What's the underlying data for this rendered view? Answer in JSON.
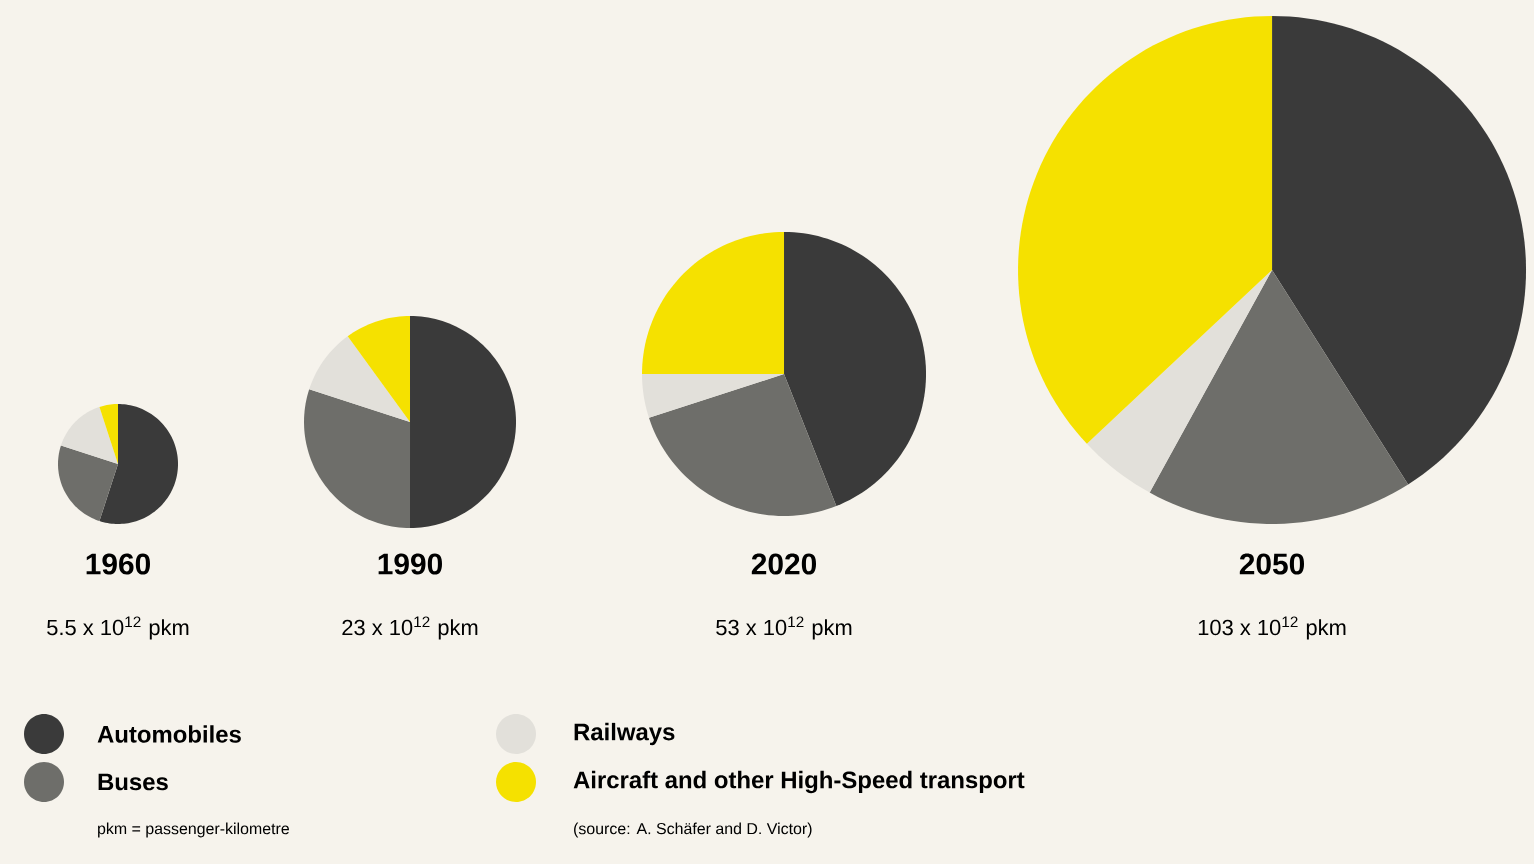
{
  "chart_data": [
    {
      "type": "pie",
      "title": "1960",
      "subtitle": "5.5 x 10$^{12}$ pkm",
      "categories": [
        "Automobiles",
        "Buses",
        "Railways",
        "Aircraft and other High-Speed transport"
      ],
      "values": [
        55,
        25,
        15,
        5
      ],
      "colors": [
        "#3a3a3a",
        "#6e6e6a",
        "#e2e0da",
        "#f5e100"
      ],
      "legend": "bottom",
      "annotations": [
        "pkm = passenger-kilometre",
        "(source: A. Schäfer and D. Victor)"
      ]
    },
    {
      "type": "pie",
      "title": "1990",
      "subtitle": "23 x 10$^{12}$ pkm",
      "categories": [
        null,
        null,
        null,
        null
      ],
      "values": [
        50,
        30,
        10,
        10
      ],
      "colors": [
        "#3a3a3a",
        "#6e6e6a",
        "#e2e0da",
        "#f5e100"
      ]
    },
    {
      "type": "pie",
      "title": "2020",
      "subtitle": "53 x 10$^{12}$ pkm",
      "categories": [
        null,
        null,
        null,
        null
      ],
      "values": [
        44,
        26,
        5,
        25
      ],
      "colors": [
        "#3a3a3a",
        "#6e6e6a",
        "#e2e0da",
        "#f5e100"
      ]
    },
    {
      "type": "pie",
      "title": "2050",
      "subtitle": "103 x 10$^{12}$ pkm",
      "categories": [
        null,
        null,
        null,
        null
      ],
      "values": [
        41,
        17,
        5,
        37
      ],
      "colors": [
        "#3a3a3a",
        "#6e6e6a",
        "#e2e0da",
        "#f5e100"
      ]
    }
  ]
}
